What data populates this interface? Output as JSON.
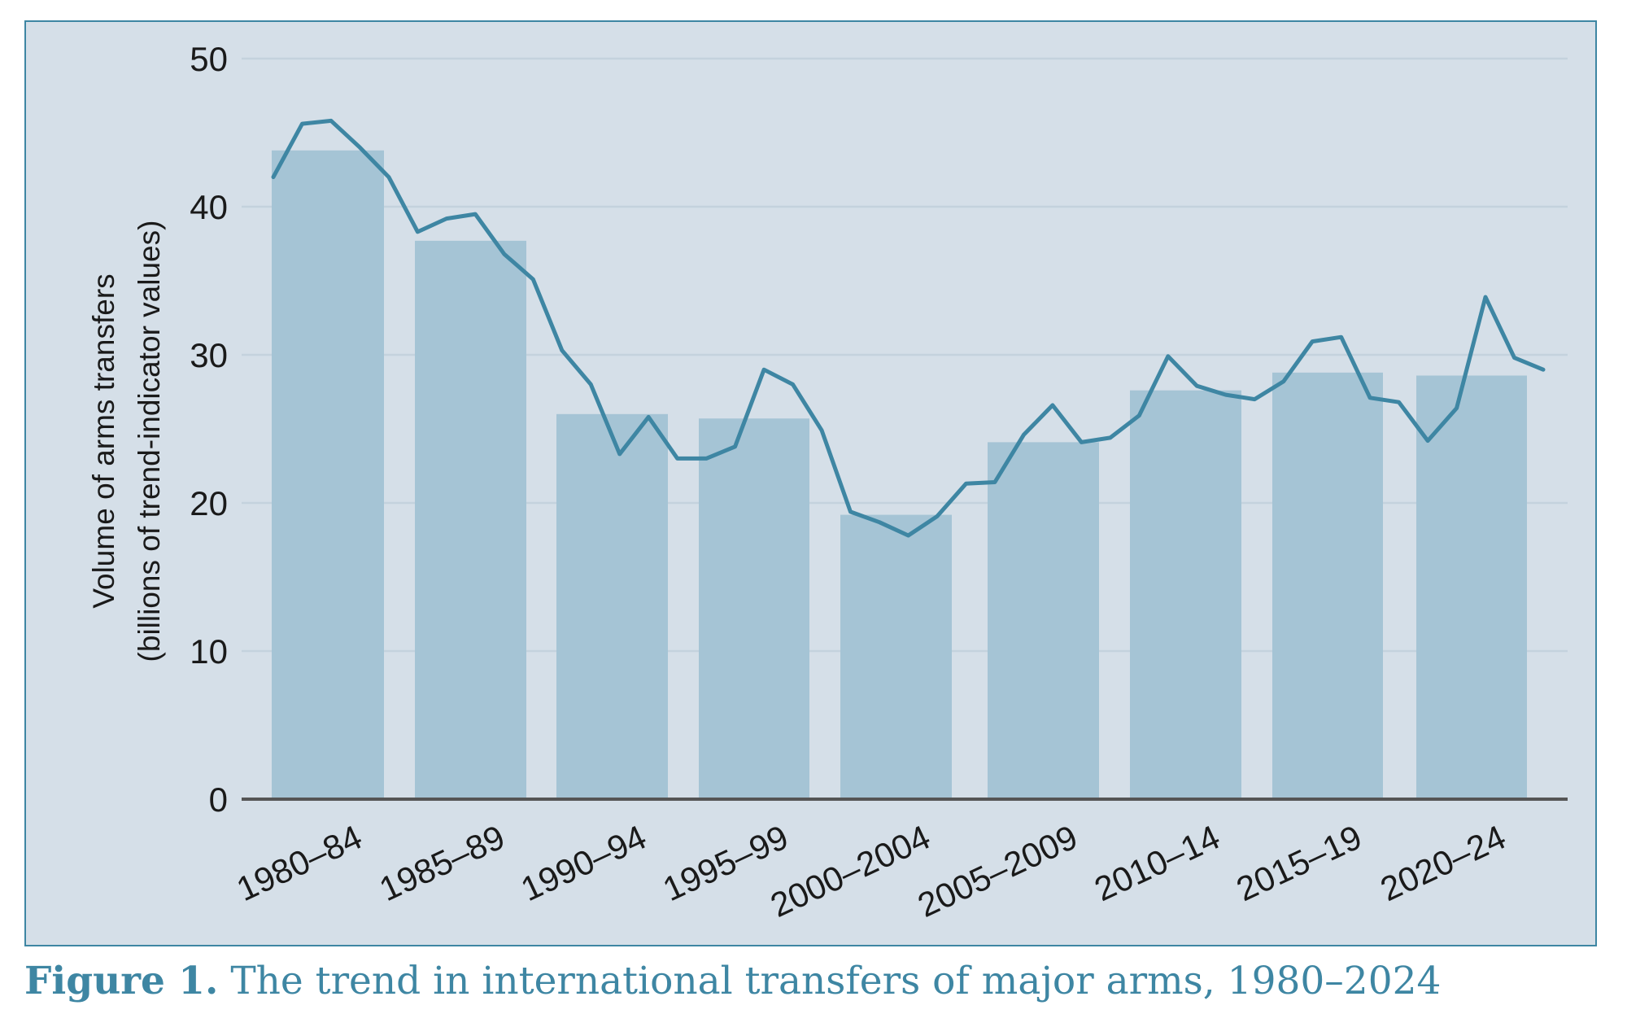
{
  "chart_data": {
    "type": "bar",
    "title": "",
    "ylabel_line1": "Volume of arms transfers",
    "ylabel_line2": "(billions of trend-indicator values)",
    "xlabel": "",
    "ylim": [
      0,
      50
    ],
    "yticks": [
      0,
      10,
      20,
      30,
      40,
      50
    ],
    "grid": true,
    "legend": "none",
    "categories": [
      "1980–84",
      "1985–89",
      "1990–94",
      "1995–99",
      "2000–2004",
      "2005–2009",
      "2010–14",
      "2015–19",
      "2020–24"
    ],
    "series": [
      {
        "kind": "bar",
        "values": [
          43.8,
          37.7,
          26.0,
          25.7,
          19.2,
          24.1,
          27.6,
          28.8,
          28.6
        ]
      },
      {
        "kind": "line",
        "x": [
          1980,
          1981,
          1982,
          1983,
          1984,
          1985,
          1986,
          1987,
          1988,
          1989,
          1990,
          1991,
          1992,
          1993,
          1994,
          1995,
          1996,
          1997,
          1998,
          1999,
          2000,
          2001,
          2002,
          2003,
          2004,
          2005,
          2006,
          2007,
          2008,
          2009,
          2010,
          2011,
          2012,
          2013,
          2014,
          2015,
          2016,
          2017,
          2018,
          2019,
          2020,
          2021,
          2022,
          2023,
          2024
        ],
        "values": [
          42.0,
          45.6,
          45.8,
          44.0,
          42.0,
          38.3,
          39.2,
          39.5,
          36.8,
          35.1,
          30.3,
          28.0,
          23.3,
          25.8,
          23.0,
          23.0,
          23.8,
          29.0,
          28.0,
          24.9,
          19.4,
          18.7,
          17.8,
          19.1,
          21.3,
          21.4,
          24.6,
          26.6,
          24.1,
          24.4,
          25.9,
          29.9,
          27.9,
          27.3,
          27.0,
          28.2,
          30.9,
          31.2,
          27.1,
          26.8,
          24.2,
          26.4,
          33.9,
          29.8,
          29.0
        ]
      }
    ],
    "colors": {
      "bar": "#a5c4d5",
      "line": "#3e86a3",
      "background": "#d5dfe8",
      "grid": "#c4d2dd",
      "axis": "#555555",
      "border": "#3e86a3"
    }
  },
  "caption": {
    "label": "Figure 1.",
    "text": "The trend in international transfers of major arms, 1980–2024"
  }
}
